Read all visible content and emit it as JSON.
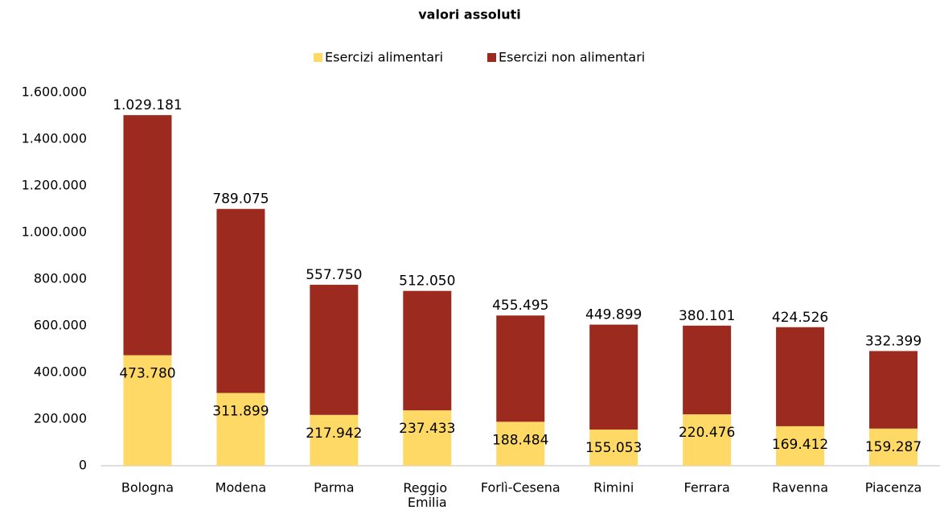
{
  "chart_data": {
    "type": "bar",
    "stacked": true,
    "title": "valori assoluti",
    "categories": [
      "Bologna",
      "Modena",
      "Parma",
      "Reggio Emilia",
      "Forlì-Cesena",
      "Rimini",
      "Ferrara",
      "Ravenna",
      "Piacenza"
    ],
    "series": [
      {
        "name": "Esercizi alimentari",
        "color": "#FFD966",
        "values": [
          473780,
          311899,
          217942,
          237433,
          188484,
          155053,
          220476,
          169412,
          159287
        ],
        "value_labels": [
          "473.780",
          "311.899",
          "217.942",
          "237.433",
          "188.484",
          "155.053",
          "220.476",
          "169.412",
          "159.287"
        ]
      },
      {
        "name": "Esercizi non alimentari",
        "color": "#9C2A1F",
        "values": [
          1029181,
          789075,
          557750,
          512050,
          455495,
          449899,
          380101,
          424526,
          332399
        ],
        "value_labels": [
          "1.029.181",
          "789.075",
          "557.750",
          "512.050",
          "455.495",
          "449.899",
          "380.101",
          "424.526",
          "332.399"
        ]
      }
    ],
    "ylim": [
      0,
      1600000
    ],
    "yticks": [
      0,
      {
        "value": 200000,
        "label": "200.000"
      },
      {
        "value": 400000,
        "label": "400.000"
      },
      {
        "value": 600000,
        "label": "600.000"
      },
      {
        "value": 800000,
        "label": "800.000"
      },
      {
        "value": 1000000,
        "label": "1.000.000"
      },
      {
        "value": 1200000,
        "label": "1.200.000"
      },
      {
        "value": 1400000,
        "label": "1.400.000"
      },
      {
        "value": 1600000,
        "label": "1.600.000"
      }
    ],
    "legend": "top"
  }
}
